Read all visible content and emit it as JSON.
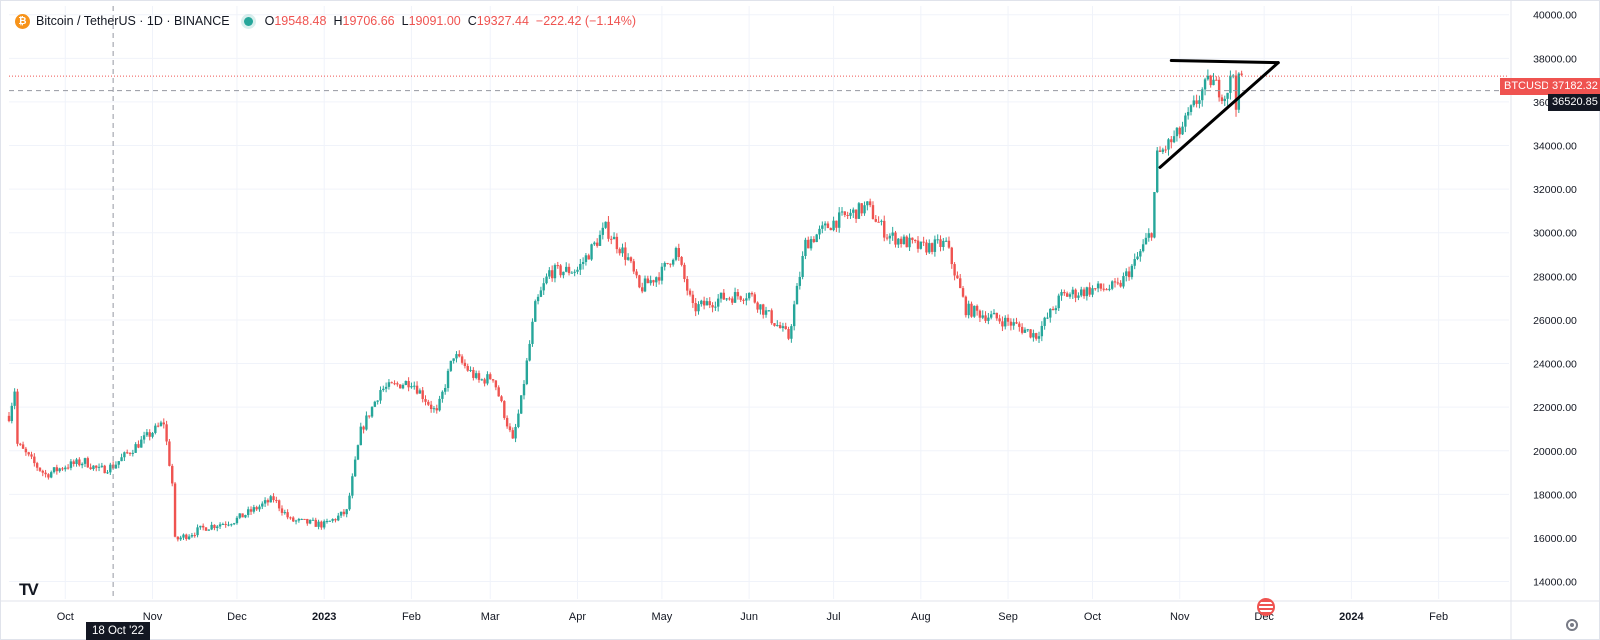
{
  "header": {
    "symbol": "Bitcoin / TetherUS · 1D · BINANCE",
    "coin_glyph": "₿",
    "ohlc": {
      "o_label": "O",
      "o": "19548.48",
      "h_label": "H",
      "h": "19706.66",
      "l_label": "L",
      "l": "19091.00",
      "c_label": "C",
      "c": "19327.44",
      "change": "−222.42 (−1.14%)"
    },
    "market_status": "open"
  },
  "branding": {
    "logo_text": "TV"
  },
  "icons": {
    "settings": "gear-icon",
    "events": "us-flag-icon",
    "status": "status-dot-icon"
  },
  "colors": {
    "up": "#26a69a",
    "down": "#ef5350",
    "grid": "#f0f3fa",
    "text": "#131722",
    "axis_text": "#131722",
    "crosshair": "#9598a1",
    "drawing": "#000000"
  },
  "price_tags": {
    "symbol_label": "BTCUSDT",
    "last_price": "37182.32",
    "crosshair_price": "36520.85",
    "crosshair_date": "18 Oct '22"
  },
  "chart_data": {
    "type": "candlestick",
    "interval": "1D",
    "x_axis_labels": [
      "Oct",
      "Nov",
      "Dec",
      "2023",
      "Feb",
      "Mar",
      "Apr",
      "May",
      "Jun",
      "Jul",
      "Aug",
      "Sep",
      "Oct",
      "Nov",
      "Dec",
      "2024",
      "Feb"
    ],
    "x_axis_label_dates": [
      "2022-10-01",
      "2022-11-01",
      "2022-12-01",
      "2023-01-01",
      "2023-02-01",
      "2023-03-01",
      "2023-04-01",
      "2023-05-01",
      "2023-06-01",
      "2023-07-01",
      "2023-08-01",
      "2023-09-01",
      "2023-10-01",
      "2023-11-01",
      "2023-12-01",
      "2024-01-01",
      "2024-02-01"
    ],
    "x_range": [
      "2022-09-11",
      "2024-02-26"
    ],
    "y_axis_ticks": [
      "14000.00",
      "16000.00",
      "18000.00",
      "20000.00",
      "22000.00",
      "24000.00",
      "26000.00",
      "28000.00",
      "30000.00",
      "32000.00",
      "34000.00",
      "36000.00",
      "38000.00",
      "40000.00"
    ],
    "y_range": [
      13200,
      40400
    ],
    "last_price": 37182.32,
    "crosshair": {
      "date": "2022-10-18",
      "price": 36520.85
    },
    "trend_anchors": [
      [
        "2022-09-11",
        21600
      ],
      [
        "2022-09-13",
        22800
      ],
      [
        "2022-09-14",
        20300
      ],
      [
        "2022-09-20",
        19400
      ],
      [
        "2022-09-24",
        18900
      ],
      [
        "2022-10-01",
        19300
      ],
      [
        "2022-10-08",
        19500
      ],
      [
        "2022-10-13",
        19100
      ],
      [
        "2022-10-18",
        19300
      ],
      [
        "2022-10-25",
        20100
      ],
      [
        "2022-11-05",
        21300
      ],
      [
        "2022-11-08",
        18500
      ],
      [
        "2022-11-09",
        15900
      ],
      [
        "2022-11-20",
        16500
      ],
      [
        "2022-11-30",
        16800
      ],
      [
        "2022-12-14",
        17800
      ],
      [
        "2022-12-20",
        16800
      ],
      [
        "2023-01-01",
        16600
      ],
      [
        "2023-01-09",
        17200
      ],
      [
        "2023-01-14",
        20900
      ],
      [
        "2023-01-21",
        22800
      ],
      [
        "2023-02-01",
        23200
      ],
      [
        "2023-02-10",
        21700
      ],
      [
        "2023-02-16",
        24400
      ],
      [
        "2023-02-25",
        23200
      ],
      [
        "2023-03-02",
        23400
      ],
      [
        "2023-03-09",
        20400
      ],
      [
        "2023-03-12",
        22300
      ],
      [
        "2023-03-17",
        26600
      ],
      [
        "2023-03-22",
        28200
      ],
      [
        "2023-04-01",
        28300
      ],
      [
        "2023-04-11",
        30200
      ],
      [
        "2023-04-19",
        28800
      ],
      [
        "2023-04-23",
        27400
      ],
      [
        "2023-05-01",
        28200
      ],
      [
        "2023-05-06",
        29200
      ],
      [
        "2023-05-12",
        26500
      ],
      [
        "2023-05-22",
        27000
      ],
      [
        "2023-06-01",
        27200
      ],
      [
        "2023-06-10",
        25900
      ],
      [
        "2023-06-15",
        25200
      ],
      [
        "2023-06-21",
        29500
      ],
      [
        "2023-07-01",
        30500
      ],
      [
        "2023-07-13",
        31200
      ],
      [
        "2023-07-20",
        29900
      ],
      [
        "2023-08-01",
        29300
      ],
      [
        "2023-08-10",
        29500
      ],
      [
        "2023-08-17",
        26500
      ],
      [
        "2023-09-01",
        25900
      ],
      [
        "2023-09-11",
        25300
      ],
      [
        "2023-09-20",
        27100
      ],
      [
        "2023-10-01",
        27400
      ],
      [
        "2023-10-10",
        27500
      ],
      [
        "2023-10-16",
        28600
      ],
      [
        "2023-10-22",
        30100
      ],
      [
        "2023-10-24",
        33500
      ],
      [
        "2023-11-01",
        34600
      ],
      [
        "2023-11-09",
        36500
      ],
      [
        "2023-11-12",
        37000
      ],
      [
        "2023-11-17",
        36300
      ],
      [
        "2023-11-20",
        37300
      ],
      [
        "2023-11-21",
        36000
      ],
      [
        "2023-11-22",
        36900
      ],
      [
        "2023-11-23",
        37182
      ]
    ],
    "annotations": [
      {
        "type": "trendline",
        "from": [
          "2023-10-29",
          37900
        ],
        "to": [
          "2023-12-06",
          37800
        ]
      },
      {
        "type": "trendline",
        "from": [
          "2023-10-25",
          33000
        ],
        "to": [
          "2023-12-06",
          37800
        ]
      }
    ],
    "grid": "on",
    "legend": "top-left"
  }
}
